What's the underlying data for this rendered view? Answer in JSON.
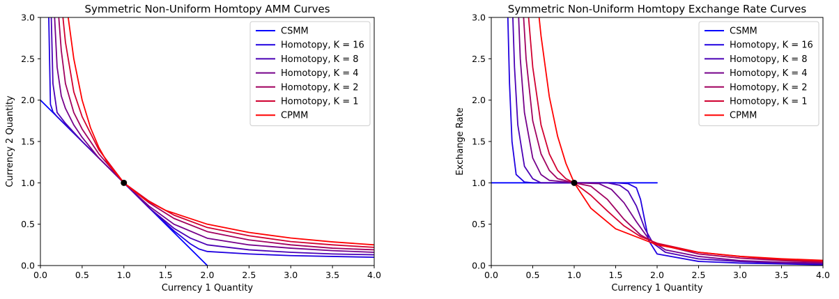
{
  "figure": {
    "colors": {
      "CSMM": "#0000ff",
      "Homotopy, K = 16": "#1f00e0",
      "Homotopy, K = 8": "#4a00b5",
      "Homotopy, K = 4": "#75008a",
      "Homotopy, K = 2": "#a0005f",
      "Homotopy, K = 1": "#d00030",
      "CPMM": "#ff0000"
    },
    "point_color": "#000000"
  },
  "chart_data": [
    {
      "type": "line",
      "title": "Symmetric Non-Uniform Homtopy AMM Curves",
      "xlabel": "Currency 1 Quantity",
      "ylabel": "Currency 2 Quantity",
      "xlim": [
        0,
        4
      ],
      "ylim": [
        0,
        3
      ],
      "xticks": [
        "0.0",
        "0.5",
        "1.0",
        "1.5",
        "2.0",
        "2.5",
        "3.0",
        "3.5",
        "4.0"
      ],
      "yticks": [
        "0.0",
        "0.5",
        "1.0",
        "1.5",
        "2.0",
        "2.5",
        "3.0"
      ],
      "grid": false,
      "legend_position": "top-right",
      "marked_point": [
        1.0,
        1.0
      ],
      "series": [
        {
          "name": "CSMM",
          "x": [
            0.0,
            0.5,
            1.0,
            1.5,
            2.0
          ],
          "y": [
            2.0,
            1.5,
            1.0,
            0.5,
            0.0
          ]
        },
        {
          "name": "Homotopy, K = 16",
          "x": [
            0.1,
            0.12,
            0.15,
            0.2,
            0.3,
            0.5,
            0.7,
            1.0,
            1.3,
            1.6,
            1.8,
            1.9,
            2.0,
            2.5,
            3.0,
            3.5,
            4.0
          ],
          "y": [
            3.0,
            1.95,
            1.86,
            1.8,
            1.7,
            1.5,
            1.3,
            1.0,
            0.7,
            0.42,
            0.26,
            0.2,
            0.17,
            0.14,
            0.12,
            0.11,
            0.1
          ]
        },
        {
          "name": "Homotopy, K = 8",
          "x": [
            0.13,
            0.15,
            0.2,
            0.3,
            0.5,
            0.7,
            1.0,
            1.3,
            1.6,
            1.8,
            2.0,
            2.5,
            3.0,
            3.5,
            4.0
          ],
          "y": [
            3.0,
            2.2,
            1.85,
            1.72,
            1.5,
            1.3,
            1.0,
            0.7,
            0.45,
            0.33,
            0.25,
            0.19,
            0.16,
            0.14,
            0.13
          ]
        },
        {
          "name": "Homotopy, K = 4",
          "x": [
            0.17,
            0.2,
            0.25,
            0.3,
            0.4,
            0.5,
            0.7,
            1.0,
            1.3,
            1.6,
            2.0,
            2.5,
            3.0,
            3.5,
            4.0
          ],
          "y": [
            3.0,
            2.4,
            2.05,
            1.9,
            1.7,
            1.55,
            1.3,
            1.0,
            0.72,
            0.5,
            0.33,
            0.25,
            0.21,
            0.18,
            0.16
          ]
        },
        {
          "name": "Homotopy, K = 2",
          "x": [
            0.22,
            0.25,
            0.3,
            0.4,
            0.5,
            0.7,
            1.0,
            1.3,
            1.6,
            2.0,
            2.5,
            3.0,
            3.5,
            4.0
          ],
          "y": [
            3.0,
            2.6,
            2.2,
            1.85,
            1.65,
            1.35,
            1.0,
            0.76,
            0.57,
            0.41,
            0.31,
            0.25,
            0.21,
            0.19
          ]
        },
        {
          "name": "Homotopy, K = 1",
          "x": [
            0.27,
            0.3,
            0.4,
            0.5,
            0.7,
            1.0,
            1.3,
            1.6,
            2.0,
            2.5,
            3.0,
            3.5,
            4.0
          ],
          "y": [
            3.0,
            2.7,
            2.1,
            1.8,
            1.4,
            1.0,
            0.78,
            0.61,
            0.46,
            0.36,
            0.29,
            0.25,
            0.22
          ]
        },
        {
          "name": "CPMM",
          "x": [
            0.333,
            0.4,
            0.5,
            0.6,
            0.7,
            0.8,
            1.0,
            1.25,
            1.5,
            2.0,
            2.5,
            3.0,
            3.5,
            4.0
          ],
          "y": [
            3.0,
            2.5,
            2.0,
            1.667,
            1.429,
            1.25,
            1.0,
            0.8,
            0.667,
            0.5,
            0.4,
            0.333,
            0.286,
            0.25
          ]
        }
      ]
    },
    {
      "type": "line",
      "title": "Symmetric Non-Uniform Homtopy Exchange Rate Curves",
      "xlabel": "Currency 1 Quantity",
      "ylabel": "Exchange Rate",
      "xlim": [
        0,
        4
      ],
      "ylim": [
        0,
        3
      ],
      "xticks": [
        "0.0",
        "0.5",
        "1.0",
        "1.5",
        "2.0",
        "2.5",
        "3.0",
        "3.5",
        "4.0"
      ],
      "yticks": [
        "0.0",
        "0.5",
        "1.0",
        "1.5",
        "2.0",
        "2.5",
        "3.0"
      ],
      "grid": false,
      "legend_position": "top-right",
      "marked_point": [
        1.0,
        1.0
      ],
      "series": [
        {
          "name": "CSMM",
          "x": [
            0.0,
            1.0,
            2.0
          ],
          "y": [
            1.0,
            1.0,
            1.0
          ]
        },
        {
          "name": "Homotopy, K = 16",
          "x": [
            0.2,
            0.22,
            0.25,
            0.3,
            0.4,
            0.5,
            1.0,
            1.5,
            1.65,
            1.75,
            1.8,
            1.85,
            1.9,
            2.0,
            2.5,
            3.0,
            3.5,
            4.0
          ],
          "y": [
            3.0,
            2.2,
            1.5,
            1.1,
            1.01,
            1.0,
            1.0,
            1.0,
            0.99,
            0.94,
            0.8,
            0.55,
            0.3,
            0.14,
            0.05,
            0.03,
            0.02,
            0.01
          ]
        },
        {
          "name": "Homotopy, K = 8",
          "x": [
            0.26,
            0.28,
            0.32,
            0.4,
            0.5,
            0.6,
            1.0,
            1.4,
            1.55,
            1.65,
            1.75,
            1.85,
            1.95,
            2.1,
            2.5,
            3.0,
            3.5,
            4.0
          ],
          "y": [
            3.0,
            2.4,
            1.7,
            1.2,
            1.05,
            1.0,
            1.0,
            1.0,
            0.97,
            0.9,
            0.72,
            0.45,
            0.27,
            0.16,
            0.08,
            0.05,
            0.03,
            0.02
          ]
        },
        {
          "name": "Homotopy, K = 4",
          "x": [
            0.33,
            0.35,
            0.4,
            0.5,
            0.6,
            0.7,
            1.0,
            1.3,
            1.45,
            1.6,
            1.75,
            1.9,
            2.1,
            2.5,
            3.0,
            3.5,
            4.0
          ],
          "y": [
            3.0,
            2.5,
            1.85,
            1.3,
            1.1,
            1.03,
            1.0,
            0.99,
            0.92,
            0.76,
            0.53,
            0.32,
            0.19,
            0.11,
            0.06,
            0.04,
            0.03
          ]
        },
        {
          "name": "Homotopy, K = 2",
          "x": [
            0.39,
            0.42,
            0.5,
            0.6,
            0.7,
            0.8,
            1.0,
            1.2,
            1.4,
            1.6,
            1.8,
            2.0,
            2.5,
            3.0,
            3.5,
            4.0
          ],
          "y": [
            3.0,
            2.5,
            1.75,
            1.35,
            1.15,
            1.05,
            1.0,
            0.96,
            0.8,
            0.56,
            0.37,
            0.26,
            0.14,
            0.09,
            0.06,
            0.04
          ]
        },
        {
          "name": "Homotopy, K = 1",
          "x": [
            0.45,
            0.5,
            0.6,
            0.7,
            0.8,
            0.9,
            1.0,
            1.2,
            1.4,
            1.6,
            1.8,
            2.0,
            2.5,
            3.0,
            3.5,
            4.0
          ],
          "y": [
            3.0,
            2.4,
            1.7,
            1.35,
            1.15,
            1.05,
            1.0,
            0.85,
            0.66,
            0.48,
            0.35,
            0.27,
            0.16,
            0.11,
            0.07,
            0.05
          ]
        },
        {
          "name": "CPMM",
          "x": [
            0.577,
            0.6,
            0.7,
            0.8,
            0.9,
            1.0,
            1.2,
            1.5,
            2.0,
            2.5,
            3.0,
            3.5,
            4.0
          ],
          "y": [
            3.0,
            2.778,
            2.041,
            1.563,
            1.235,
            1.0,
            0.694,
            0.444,
            0.25,
            0.16,
            0.111,
            0.082,
            0.063
          ]
        }
      ]
    }
  ]
}
